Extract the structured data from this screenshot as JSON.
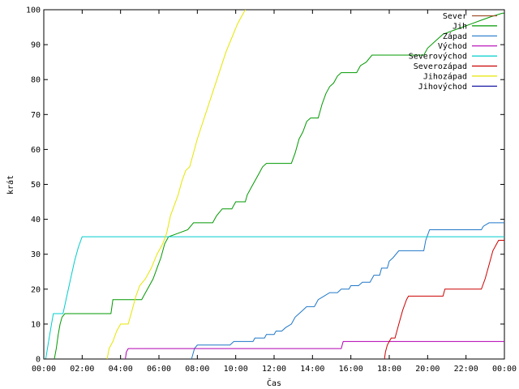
{
  "chart_data": {
    "type": "line",
    "xlabel": "Čas",
    "ylabel": "krát",
    "xlim": [
      0,
      24
    ],
    "ylim": [
      0,
      100
    ],
    "grid": false,
    "legend_position": "top-right",
    "x_ticks": [
      {
        "v": 0,
        "label": "00:00"
      },
      {
        "v": 2,
        "label": "02:00"
      },
      {
        "v": 4,
        "label": "04:00"
      },
      {
        "v": 6,
        "label": "06:00"
      },
      {
        "v": 8,
        "label": "08:00"
      },
      {
        "v": 10,
        "label": "10:00"
      },
      {
        "v": 12,
        "label": "12:00"
      },
      {
        "v": 14,
        "label": "14:00"
      },
      {
        "v": 16,
        "label": "16:00"
      },
      {
        "v": 18,
        "label": "18:00"
      },
      {
        "v": 20,
        "label": "20:00"
      },
      {
        "v": 22,
        "label": "22:00"
      },
      {
        "v": 24,
        "label": "00:00"
      }
    ],
    "y_ticks": [
      0,
      10,
      20,
      30,
      40,
      50,
      60,
      70,
      80,
      90,
      100
    ],
    "series": [
      {
        "name": "Sever",
        "color": "#a0522d",
        "points": []
      },
      {
        "name": "Jih",
        "color": "#009900",
        "points": [
          [
            0.55,
            0
          ],
          [
            0.65,
            3
          ],
          [
            0.75,
            7
          ],
          [
            0.85,
            10
          ],
          [
            0.95,
            12
          ],
          [
            1.1,
            13
          ],
          [
            3.5,
            13
          ],
          [
            3.6,
            17
          ],
          [
            5.1,
            17
          ],
          [
            5.3,
            19
          ],
          [
            5.5,
            21
          ],
          [
            5.7,
            23
          ],
          [
            5.9,
            26
          ],
          [
            6.1,
            29
          ],
          [
            6.3,
            33
          ],
          [
            6.5,
            35
          ],
          [
            7.0,
            36
          ],
          [
            7.5,
            37
          ],
          [
            7.8,
            39
          ],
          [
            8.8,
            39
          ],
          [
            9.0,
            41
          ],
          [
            9.3,
            43
          ],
          [
            9.8,
            43
          ],
          [
            10.0,
            45
          ],
          [
            10.5,
            45
          ],
          [
            10.6,
            47
          ],
          [
            10.8,
            49
          ],
          [
            11.0,
            51
          ],
          [
            11.2,
            53
          ],
          [
            11.4,
            55
          ],
          [
            11.6,
            56
          ],
          [
            12.9,
            56
          ],
          [
            13.1,
            59
          ],
          [
            13.3,
            63
          ],
          [
            13.5,
            65
          ],
          [
            13.7,
            68
          ],
          [
            13.9,
            69
          ],
          [
            14.3,
            69
          ],
          [
            14.5,
            73
          ],
          [
            14.7,
            76
          ],
          [
            14.9,
            78
          ],
          [
            15.1,
            79
          ],
          [
            15.3,
            81
          ],
          [
            15.5,
            82
          ],
          [
            16.3,
            82
          ],
          [
            16.5,
            84
          ],
          [
            16.8,
            85
          ],
          [
            17.1,
            87
          ],
          [
            19.8,
            87
          ],
          [
            20.0,
            89
          ],
          [
            20.4,
            91
          ],
          [
            20.8,
            93
          ],
          [
            21.3,
            94
          ],
          [
            21.8,
            95
          ],
          [
            22.3,
            96
          ],
          [
            22.8,
            97
          ],
          [
            23.3,
            98
          ],
          [
            23.9,
            99
          ],
          [
            24,
            99
          ]
        ]
      },
      {
        "name": "Západ",
        "color": "#1f77c8",
        "points": [
          [
            7.7,
            0
          ],
          [
            7.75,
            1
          ],
          [
            7.85,
            3
          ],
          [
            8.0,
            4
          ],
          [
            9.7,
            4
          ],
          [
            9.9,
            5
          ],
          [
            10.9,
            5
          ],
          [
            11.0,
            6
          ],
          [
            11.5,
            6
          ],
          [
            11.6,
            7
          ],
          [
            12.0,
            7
          ],
          [
            12.1,
            8
          ],
          [
            12.4,
            8
          ],
          [
            12.6,
            9
          ],
          [
            12.9,
            10
          ],
          [
            13.1,
            12
          ],
          [
            13.3,
            13
          ],
          [
            13.5,
            14
          ],
          [
            13.7,
            15
          ],
          [
            14.1,
            15
          ],
          [
            14.3,
            17
          ],
          [
            14.6,
            18
          ],
          [
            14.9,
            19
          ],
          [
            15.3,
            19
          ],
          [
            15.5,
            20
          ],
          [
            15.9,
            20
          ],
          [
            16.0,
            21
          ],
          [
            16.4,
            21
          ],
          [
            16.6,
            22
          ],
          [
            17.0,
            22
          ],
          [
            17.2,
            24
          ],
          [
            17.5,
            24
          ],
          [
            17.6,
            26
          ],
          [
            17.9,
            26
          ],
          [
            18.0,
            28
          ],
          [
            18.2,
            29
          ],
          [
            18.5,
            31
          ],
          [
            19.8,
            31
          ],
          [
            19.9,
            34
          ],
          [
            20.1,
            37
          ],
          [
            22.8,
            37
          ],
          [
            22.9,
            38
          ],
          [
            23.2,
            39
          ],
          [
            24,
            39
          ]
        ]
      },
      {
        "name": "Východ",
        "color": "#b300b3",
        "points": [
          [
            4.25,
            0
          ],
          [
            4.3,
            2
          ],
          [
            4.4,
            3
          ],
          [
            15.5,
            3
          ],
          [
            15.6,
            5
          ],
          [
            24,
            5
          ]
        ]
      },
      {
        "name": "Severovýchod",
        "color": "#00cccc",
        "points": [
          [
            0.1,
            0
          ],
          [
            0.25,
            5
          ],
          [
            0.4,
            10
          ],
          [
            0.5,
            13
          ],
          [
            1.0,
            13
          ],
          [
            1.2,
            18
          ],
          [
            1.4,
            23
          ],
          [
            1.6,
            28
          ],
          [
            1.8,
            32
          ],
          [
            2.0,
            35
          ],
          [
            24,
            35
          ]
        ]
      },
      {
        "name": "Severozápad",
        "color": "#cc0000",
        "points": [
          [
            17.75,
            0
          ],
          [
            17.8,
            2
          ],
          [
            17.9,
            4
          ],
          [
            18.0,
            5
          ],
          [
            18.1,
            6
          ],
          [
            18.3,
            6
          ],
          [
            18.5,
            10
          ],
          [
            18.7,
            14
          ],
          [
            18.9,
            17
          ],
          [
            19.0,
            18
          ],
          [
            20.8,
            18
          ],
          [
            20.9,
            20
          ],
          [
            22.8,
            20
          ],
          [
            23.0,
            23
          ],
          [
            23.2,
            27
          ],
          [
            23.4,
            31
          ],
          [
            23.6,
            33
          ],
          [
            23.7,
            34
          ],
          [
            24,
            34
          ]
        ]
      },
      {
        "name": "Jihozápad",
        "color": "#e6e600",
        "points": [
          [
            3.3,
            0
          ],
          [
            3.4,
            3
          ],
          [
            3.6,
            5
          ],
          [
            3.8,
            8
          ],
          [
            4.0,
            10
          ],
          [
            4.4,
            10
          ],
          [
            4.6,
            14
          ],
          [
            4.8,
            18
          ],
          [
            5.0,
            21
          ],
          [
            5.3,
            23
          ],
          [
            5.6,
            26
          ],
          [
            5.9,
            30
          ],
          [
            6.2,
            33
          ],
          [
            6.4,
            36
          ],
          [
            6.6,
            41
          ],
          [
            6.8,
            44
          ],
          [
            7.0,
            47
          ],
          [
            7.2,
            51
          ],
          [
            7.4,
            54
          ],
          [
            7.6,
            55
          ],
          [
            7.8,
            59
          ],
          [
            8.0,
            63
          ],
          [
            8.3,
            68
          ],
          [
            8.6,
            73
          ],
          [
            8.9,
            78
          ],
          [
            9.2,
            83
          ],
          [
            9.5,
            88
          ],
          [
            9.8,
            92
          ],
          [
            10.1,
            96
          ],
          [
            10.4,
            99
          ],
          [
            10.5,
            100
          ]
        ]
      },
      {
        "name": "Jihovýchod",
        "color": "#000099",
        "points": []
      }
    ]
  }
}
